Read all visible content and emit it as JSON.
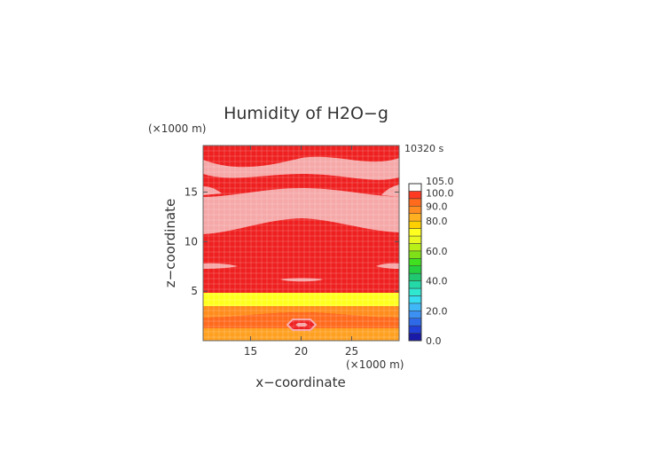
{
  "chart_data": {
    "type": "heatmap",
    "title": "Humidity of H2O−g",
    "xlabel": "x−coordinate",
    "ylabel": "z−coordinate",
    "x_unit": "(×1000 m)",
    "y_unit": "(×1000 m)",
    "time_label": "10320 s",
    "xlim": [
      10.3,
      29.7
    ],
    "ylim": [
      0,
      19.7
    ],
    "x_ticks": [
      15,
      20,
      25
    ],
    "y_ticks": [
      5,
      10,
      15
    ],
    "grid": true,
    "colorbar": {
      "levels": [
        0,
        5,
        10,
        15,
        20,
        25,
        30,
        35,
        40,
        45,
        50,
        55,
        60,
        65,
        70,
        75,
        80,
        85,
        90,
        95,
        100,
        105
      ],
      "colors": [
        "#1a1aa8",
        "#2040d8",
        "#2e6ae8",
        "#3c90f2",
        "#40b8f8",
        "#38dcf0",
        "#30e8d0",
        "#24d8a8",
        "#20c870",
        "#24d040",
        "#40e020",
        "#80e018",
        "#b8f018",
        "#e8f820",
        "#ffff20",
        "#ffd000",
        "#ffb020",
        "#ff8c20",
        "#ff6a1c",
        "#ff3a22",
        "#ff0a0a"
      ],
      "tick_labels": [
        "0.0",
        "20.0",
        "40.0",
        "60.0",
        "80.0",
        "90.0",
        "100.0",
        "105.0"
      ],
      "top_box": "white"
    },
    "regions": [
      {
        "name": "background",
        "value": 100,
        "color": "#ef2020"
      },
      {
        "name": "pink-humid",
        "value": 103,
        "color": "#f6a8a8"
      },
      {
        "name": "orange-band",
        "value": 87,
        "color": "#ff8c1c"
      },
      {
        "name": "yellow-band",
        "value": 78,
        "color": "#ffff1e"
      },
      {
        "name": "orange-lower",
        "value": 88,
        "color": "#ffa020"
      }
    ]
  }
}
